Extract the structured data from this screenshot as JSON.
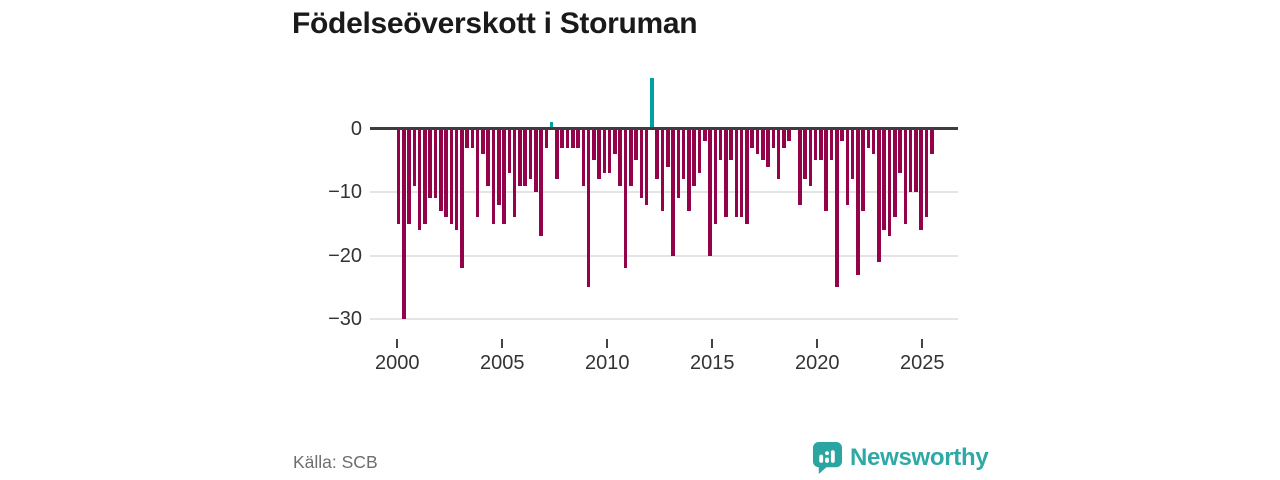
{
  "title": "Födelseöverskott i Storuman",
  "source": "Källa: SCB",
  "brand": {
    "name": "Newsworthy",
    "color": "#2fa9a5"
  },
  "chart_data": {
    "type": "bar",
    "title": "Födelseöverskott i Storuman",
    "frequency": "quarterly",
    "start": "2000-Q1",
    "end": "2025-Q2",
    "values": [
      -15,
      -30,
      -15,
      -9,
      -16,
      -15,
      -11,
      -11,
      -13,
      -14,
      -15,
      -16,
      -22,
      -3,
      -3,
      -14,
      -4,
      -9,
      -15,
      -12,
      -15,
      -7,
      -14,
      -9,
      -9,
      -8,
      -10,
      -17,
      -3,
      1,
      -8,
      -3,
      -3,
      -3,
      -3,
      -9,
      -25,
      -5,
      -8,
      -7,
      -7,
      -4,
      -9,
      -22,
      -9,
      -5,
      -11,
      -12,
      8,
      -8,
      -13,
      -6,
      -20,
      -11,
      -8,
      -13,
      -9,
      -7,
      -2,
      -20,
      -15,
      -5,
      -14,
      -5,
      -14,
      -14,
      -15,
      -3,
      -4,
      -5,
      -6,
      -3,
      -8,
      -3,
      -2,
      0,
      -12,
      -8,
      -9,
      -5,
      -5,
      -13,
      -5,
      -25,
      -2,
      -12,
      -8,
      -23,
      -13,
      -3,
      -4,
      -21,
      -16,
      -17,
      -14,
      -7,
      -15,
      -10,
      -10,
      -16,
      -14,
      -4
    ],
    "positive_color": "#00a1a1",
    "negative_color": "#94034a",
    "ylim": [
      -32,
      9
    ],
    "yticks": {
      "labels": [
        "0",
        "−10",
        "−20",
        "−30"
      ],
      "values": [
        0,
        -10,
        -20,
        -30
      ]
    },
    "xticks": {
      "labels": [
        "2000",
        "2005",
        "2010",
        "2015",
        "2020",
        "2025"
      ],
      "values": [
        2000,
        2005,
        2010,
        2015,
        2020,
        2025
      ]
    },
    "grid": true,
    "legend": "none"
  }
}
